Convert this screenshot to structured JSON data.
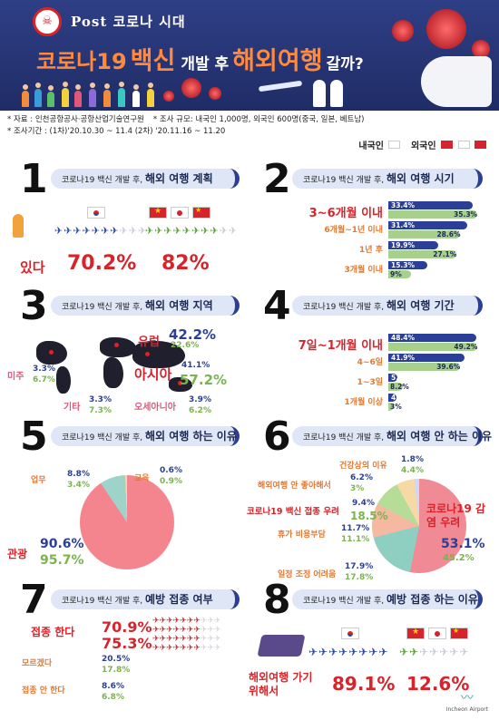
{
  "header": {
    "badge": "☠",
    "top_line": "Post 코로나 시대",
    "title_part1": "코로나19",
    "title_part2": "백신",
    "title_part3": "개발 후",
    "title_part4": "해외여행",
    "title_part5": "갈까?"
  },
  "info": {
    "source": "* 자료 : 인천공항공사·공항산업기술연구원",
    "scale": "* 조사 규모: 내국인 1,000명, 외국인 600명(중국, 일본, 베트남)",
    "period": "* 조사기간 : (1차)'20.10.30 ~ 11.4 (2차) '20.11.16 ~ 11.20"
  },
  "legend": {
    "domestic": "내국인",
    "foreign": "외국인"
  },
  "colors": {
    "domestic": "#2b3f96",
    "foreign": "#a8d08d",
    "accent_red": "#d8232a"
  },
  "s1": {
    "num": "1",
    "pill_prefix": "코로나19 백신 개발 후,",
    "pill_bold": "해외 여행 계획",
    "label": "있다",
    "kr_value": "70.2%",
    "fr_value": "82%",
    "kr_planes": 7,
    "fr_planes": 8
  },
  "s2": {
    "num": "2",
    "pill_prefix": "코로나19 백신 개발 후,",
    "pill_bold": "해외 여행 시기",
    "rows": [
      {
        "label": "3~6개월 이내",
        "kr": "33.4%",
        "fr": "35.3%",
        "kr_pct": 33.4,
        "fr_pct": 35.3
      },
      {
        "label": "6개월~1년 이내",
        "kr": "31.4%",
        "fr": "28.6%",
        "kr_pct": 31.4,
        "fr_pct": 28.6
      },
      {
        "label": "1년 후",
        "kr": "19.9%",
        "fr": "27.1%",
        "kr_pct": 19.9,
        "fr_pct": 27.1
      },
      {
        "label": "3개월 이내",
        "kr": "15.3%",
        "fr": "9%",
        "kr_pct": 15.3,
        "fr_pct": 9
      }
    ]
  },
  "s3": {
    "num": "3",
    "pill_prefix": "코로나19 백신 개발 후,",
    "pill_bold": "해외 여행 지역",
    "regions": {
      "europe": {
        "label": "유럽",
        "kr": "42.2%",
        "fr": "22.6%"
      },
      "asia": {
        "label": "아시아",
        "kr": "41.1%",
        "fr": "57.2%"
      },
      "america": {
        "label": "미주",
        "kr": "3.3%",
        "fr": "6.7%"
      },
      "other": {
        "label": "기타",
        "kr": "3.3%",
        "fr": "7.3%"
      },
      "oceania": {
        "label": "오세아니아",
        "kr": "3.9%",
        "fr": "6.2%"
      }
    }
  },
  "s4": {
    "num": "4",
    "pill_prefix": "코로나19 백신 개발 후,",
    "pill_bold": "해외 여행 기간",
    "rows": [
      {
        "label": "7일~1개월 이내",
        "kr": "48.4%",
        "fr": "49.2%",
        "kr_pct": 48.4,
        "fr_pct": 49.2
      },
      {
        "label": "4~6일",
        "kr": "41.9%",
        "fr": "39.6%",
        "kr_pct": 41.9,
        "fr_pct": 39.6
      },
      {
        "label": "1~3일",
        "kr": "5.2%",
        "fr": "8.2%",
        "kr_pct": 5.2,
        "fr_pct": 8.2
      },
      {
        "label": "1개월 이상",
        "kr": "4.6%",
        "fr": "3%",
        "kr_pct": 4.6,
        "fr_pct": 3
      }
    ]
  },
  "s5": {
    "num": "5",
    "pill_prefix": "코로나19 백신 개발 후,",
    "pill_bold": "해외 여행 하는 이유",
    "items": {
      "business": {
        "label": "업무",
        "kr": "8.8%",
        "fr": "3.4%"
      },
      "education": {
        "label": "교육",
        "kr": "0.6%",
        "fr": "0.9%"
      },
      "tourism": {
        "label": "관광",
        "kr": "90.6%",
        "fr": "95.7%"
      }
    }
  },
  "s6": {
    "num": "6",
    "pill_prefix": "코로나19 백신 개발 후,",
    "pill_bold": "해외 여행 안 하는 이유",
    "items": {
      "health": {
        "label": "건강상의 이유",
        "kr": "1.8%",
        "fr": "4.4%"
      },
      "dislike": {
        "label": "해외여행 안 좋아해서",
        "kr": "6.2%",
        "fr": "3%"
      },
      "vaccine": {
        "label": "코로나19 백신 접종 우려",
        "kr": "9.4%",
        "fr": "18.5%"
      },
      "cost": {
        "label": "휴가 비용부담",
        "kr": "11.7%",
        "fr": "11.1%"
      },
      "schedule": {
        "label": "일정 조정 어려움",
        "kr": "17.9%",
        "fr": "17.8%"
      },
      "infection": {
        "label": "코로나19 감염 우려",
        "kr": "53.1%",
        "fr": "45.2%"
      }
    }
  },
  "s7": {
    "num": "7",
    "pill_prefix": "코로나19 백신 개발 후,",
    "pill_bold": "예방 접종 여부",
    "rows": [
      {
        "label": "접종 한다",
        "kr": "70.9%",
        "fr": "75.3%"
      },
      {
        "label": "모르겠다",
        "kr": "20.5%",
        "fr": "17.8%"
      },
      {
        "label": "접종 안 한다",
        "kr": "8.6%",
        "fr": "6.8%"
      }
    ]
  },
  "s8": {
    "num": "8",
    "pill_prefix": "코로나19 백신 개발 후,",
    "pill_bold": "예방 접종 하는 이유",
    "label": "해외여행 가기 위해서",
    "kr_value": "89.1%",
    "fr_value": "12.6%"
  },
  "footer": {
    "brand": "Incheon Airport"
  }
}
